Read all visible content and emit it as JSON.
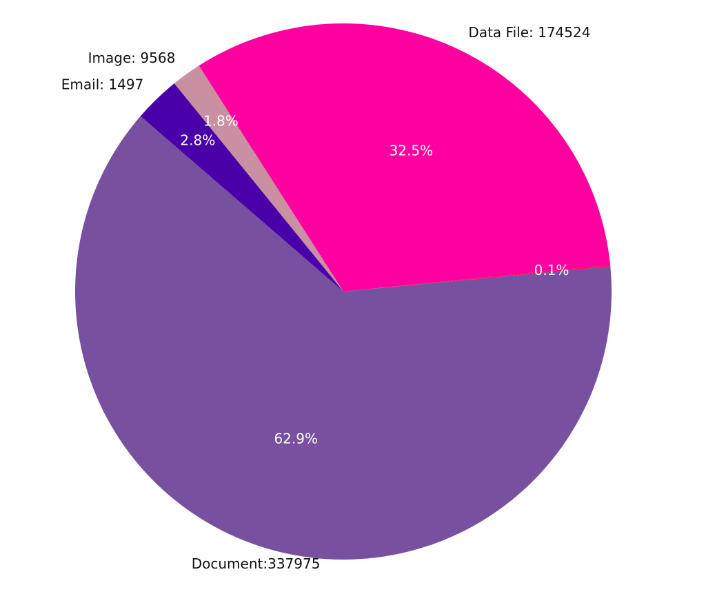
{
  "chart_data": {
    "type": "pie",
    "categories": [
      "Data File: 174524",
      null,
      "Document:337975",
      "Email: 1497",
      "Image: 9568"
    ],
    "values": [
      32.5,
      0.1,
      62.9,
      2.8,
      1.8
    ],
    "value_labels": [
      "32.5%",
      "0.1%",
      "62.9%",
      "2.8%",
      "1.8%"
    ],
    "colors": [
      "#ff00a0",
      "#ff0a5a",
      "#77509f",
      "#4a00a8",
      "#c890a0"
    ]
  }
}
